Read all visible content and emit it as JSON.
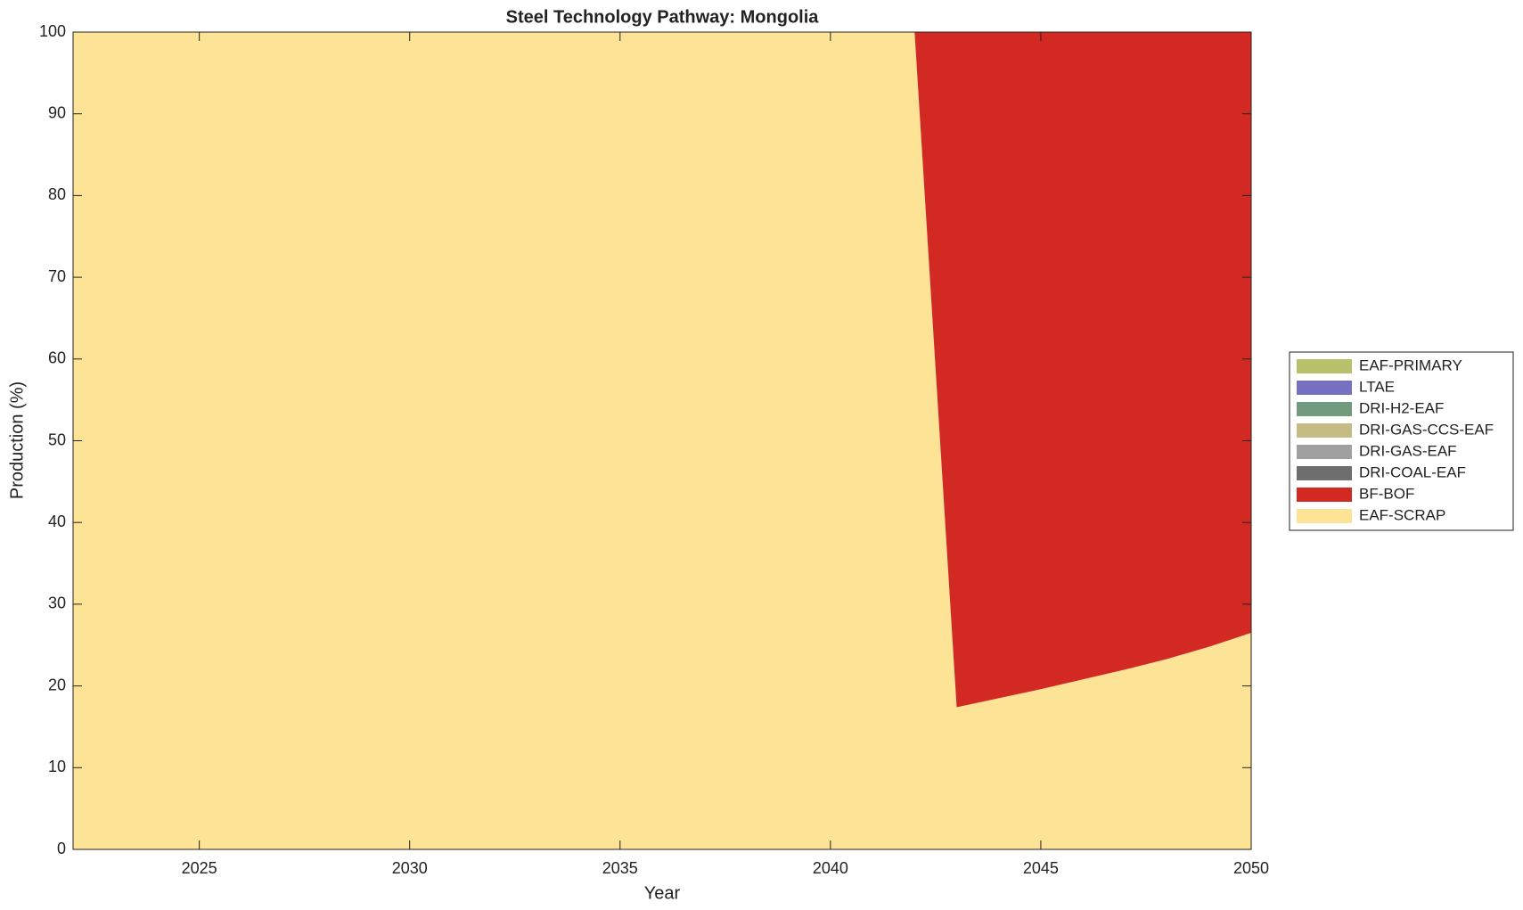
{
  "chart_data": {
    "type": "stacked-area",
    "title": "Steel Technology Pathway: Mongolia",
    "x_label": "Year",
    "y_label": "Production (%)",
    "x": [
      2022,
      2023,
      2024,
      2025,
      2026,
      2027,
      2028,
      2029,
      2030,
      2031,
      2032,
      2033,
      2034,
      2035,
      2036,
      2037,
      2038,
      2039,
      2040,
      2041,
      2042,
      2043,
      2044,
      2045,
      2046,
      2047,
      2048,
      2049,
      2050
    ],
    "series": [
      {
        "name": "EAF-PRIMARY",
        "color": "#b9c06a",
        "values": [
          0,
          0,
          0,
          0,
          0,
          0,
          0,
          0,
          0,
          0,
          0,
          0,
          0,
          0,
          0,
          0,
          0,
          0,
          0,
          0,
          0,
          0,
          0,
          0,
          0,
          0,
          0,
          0,
          0
        ]
      },
      {
        "name": "LTAE",
        "color": "#7570bf",
        "values": [
          0,
          0,
          0,
          0,
          0,
          0,
          0,
          0,
          0,
          0,
          0,
          0,
          0,
          0,
          0,
          0,
          0,
          0,
          0,
          0,
          0,
          0,
          0,
          0,
          0,
          0,
          0,
          0,
          0
        ]
      },
      {
        "name": "DRI-H2-EAF",
        "color": "#729a7d",
        "values": [
          0,
          0,
          0,
          0,
          0,
          0,
          0,
          0,
          0,
          0,
          0,
          0,
          0,
          0,
          0,
          0,
          0,
          0,
          0,
          0,
          0,
          0,
          0,
          0,
          0,
          0,
          0,
          0,
          0
        ]
      },
      {
        "name": "DRI-GAS-CCS-EAF",
        "color": "#c4bc82",
        "values": [
          0,
          0,
          0,
          0,
          0,
          0,
          0,
          0,
          0,
          0,
          0,
          0,
          0,
          0,
          0,
          0,
          0,
          0,
          0,
          0,
          0,
          0,
          0,
          0,
          0,
          0,
          0,
          0,
          0
        ]
      },
      {
        "name": "DRI-GAS-EAF",
        "color": "#a0a0a0",
        "values": [
          0,
          0,
          0,
          0,
          0,
          0,
          0,
          0,
          0,
          0,
          0,
          0,
          0,
          0,
          0,
          0,
          0,
          0,
          0,
          0,
          0,
          0,
          0,
          0,
          0,
          0,
          0,
          0,
          0
        ]
      },
      {
        "name": "DRI-COAL-EAF",
        "color": "#6e6e6e",
        "values": [
          0,
          0,
          0,
          0,
          0,
          0,
          0,
          0,
          0,
          0,
          0,
          0,
          0,
          0,
          0,
          0,
          0,
          0,
          0,
          0,
          0,
          0,
          0,
          0,
          0,
          0,
          0,
          0,
          0
        ]
      },
      {
        "name": "BF-BOF",
        "color": "#d22a23",
        "values": [
          0,
          0,
          0,
          0,
          0,
          0,
          0,
          0,
          0,
          0,
          0,
          0,
          0,
          0,
          0,
          0,
          0,
          0,
          0,
          0,
          0,
          82.6,
          81.5,
          80.4,
          79.2,
          78.0,
          76.7,
          75.2,
          73.5
        ]
      },
      {
        "name": "EAF-SCRAP",
        "color": "#fde396",
        "values": [
          100,
          100,
          100,
          100,
          100,
          100,
          100,
          100,
          100,
          100,
          100,
          100,
          100,
          100,
          100,
          100,
          100,
          100,
          100,
          100,
          100,
          17.4,
          18.5,
          19.6,
          20.8,
          22.0,
          23.3,
          24.8,
          26.5
        ]
      }
    ],
    "xlim": [
      2022,
      2050
    ],
    "xticks": [
      2025,
      2030,
      2035,
      2040,
      2045,
      2050
    ],
    "ylim": [
      0,
      100
    ],
    "yticks": [
      0,
      10,
      20,
      30,
      40,
      50,
      60,
      70,
      80,
      90,
      100
    ],
    "legend": "outside-right"
  }
}
